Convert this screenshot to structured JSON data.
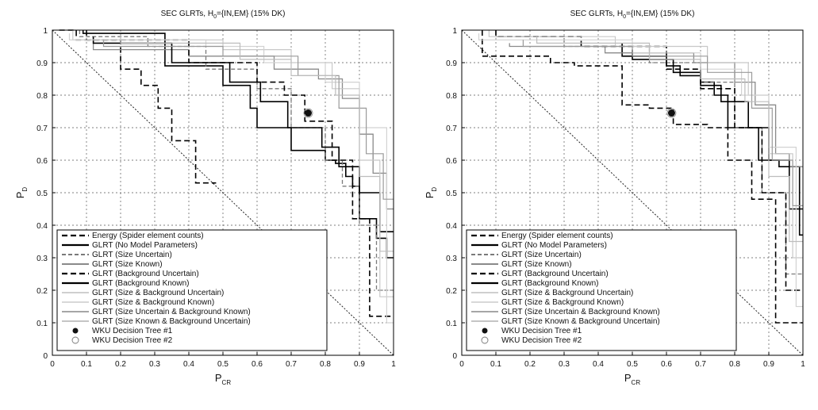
{
  "chart_data": [
    {
      "type": "line",
      "title_main": "SEC GLRTs, H",
      "title_sub": "0",
      "title_rest": "={IN,EM} (15% DK)",
      "xlabel_main": "P",
      "xlabel_sub": "CR",
      "ylabel_main": "P",
      "ylabel_sub": "D",
      "xlim": [
        0,
        1
      ],
      "ylim": [
        0,
        1
      ],
      "xticks": [
        "0",
        "0.1",
        "0.2",
        "0.3",
        "0.4",
        "0.5",
        "0.6",
        "0.7",
        "0.8",
        "0.9",
        "1"
      ],
      "yticks": [
        "0",
        "0.1",
        "0.2",
        "0.3",
        "0.4",
        "0.5",
        "0.6",
        "0.7",
        "0.8",
        "0.9",
        "1"
      ],
      "grid": true,
      "legend_position": "bottom-left",
      "series": [
        {
          "name": "Energy (Spider element counts)",
          "color": "#000000",
          "dash": "7,4",
          "width": 1.6,
          "x": [
            0.02,
            0.07,
            0.07,
            0.2,
            0.2,
            0.26,
            0.26,
            0.31,
            0.31,
            0.35,
            0.35,
            0.42,
            0.42,
            0.48
          ],
          "y": [
            1,
            1,
            0.97,
            0.97,
            0.88,
            0.88,
            0.83,
            0.83,
            0.76,
            0.76,
            0.66,
            0.66,
            0.53,
            0.53
          ]
        },
        {
          "name": "GLRT (No Model Parameters)",
          "color": "#000000",
          "dash": "",
          "width": 1.6,
          "x": [
            0.09,
            0.09,
            0.33,
            0.33,
            0.5,
            0.5,
            0.58,
            0.58,
            0.6,
            0.6,
            0.7,
            0.7,
            0.8,
            0.8,
            0.83,
            0.83,
            0.86,
            0.86,
            0.88,
            0.88,
            0.9,
            0.9,
            0.95,
            0.95,
            0.98,
            0.98,
            1
          ],
          "y": [
            1,
            0.99,
            0.99,
            0.89,
            0.89,
            0.83,
            0.83,
            0.76,
            0.76,
            0.7,
            0.7,
            0.63,
            0.63,
            0.6,
            0.6,
            0.59,
            0.59,
            0.55,
            0.55,
            0.52,
            0.52,
            0.42,
            0.42,
            0.36,
            0.36,
            0.3,
            0.3
          ]
        },
        {
          "name": "GLRT (Size Uncertain)",
          "color": "#7a7a7a",
          "dash": "5,3",
          "width": 1.3,
          "x": [
            0.08,
            0.08,
            0.28,
            0.28,
            0.45,
            0.45,
            0.6,
            0.6,
            0.7,
            0.7,
            0.8,
            0.8,
            0.85,
            0.85,
            0.9,
            0.9,
            0.95,
            0.95,
            1
          ],
          "y": [
            1,
            0.98,
            0.98,
            0.95,
            0.95,
            0.88,
            0.88,
            0.82,
            0.82,
            0.7,
            0.7,
            0.6,
            0.6,
            0.52,
            0.52,
            0.4,
            0.4,
            0.2,
            0.2
          ]
        },
        {
          "name": "GLRT (Size Known)",
          "color": "#8a8a8a",
          "dash": "",
          "width": 1.3,
          "x": [
            0.12,
            0.12,
            0.4,
            0.4,
            0.65,
            0.65,
            0.78,
            0.78,
            0.85,
            0.85,
            0.9,
            0.9,
            0.94,
            0.94,
            0.98,
            0.98,
            1
          ],
          "y": [
            0.96,
            0.94,
            0.94,
            0.92,
            0.92,
            0.88,
            0.88,
            0.85,
            0.85,
            0.79,
            0.79,
            0.68,
            0.68,
            0.56,
            0.56,
            0.45,
            0.45
          ]
        },
        {
          "name": "GLRT (Background Uncertain)",
          "color": "#000000",
          "dash": "7,4",
          "width": 1.6,
          "x": [
            0.1,
            0.1,
            0.4,
            0.4,
            0.6,
            0.6,
            0.68,
            0.68,
            0.74,
            0.74,
            0.82,
            0.82,
            0.88,
            0.88,
            0.93,
            0.93,
            1
          ],
          "y": [
            1,
            0.97,
            0.97,
            0.9,
            0.9,
            0.84,
            0.84,
            0.8,
            0.8,
            0.72,
            0.72,
            0.6,
            0.6,
            0.42,
            0.42,
            0.12,
            0.12
          ]
        },
        {
          "name": "GLRT (Background Known)",
          "color": "#000000",
          "dash": "",
          "width": 1.6,
          "x": [
            0.12,
            0.12,
            0.35,
            0.35,
            0.52,
            0.52,
            0.61,
            0.61,
            0.69,
            0.69,
            0.79,
            0.79,
            0.84,
            0.84,
            0.9,
            0.9,
            0.96,
            0.96,
            1
          ],
          "y": [
            0.98,
            0.96,
            0.96,
            0.9,
            0.9,
            0.84,
            0.84,
            0.78,
            0.78,
            0.7,
            0.7,
            0.64,
            0.64,
            0.58,
            0.58,
            0.5,
            0.5,
            0.38,
            0.38
          ]
        },
        {
          "name": "GLRT (Size & Background Uncertain)",
          "color": "#c8c8c8",
          "dash": "",
          "width": 1.2,
          "x": [
            0.06,
            0.06,
            0.5,
            0.5,
            0.7,
            0.7,
            0.82,
            0.82,
            0.9,
            0.9,
            0.96,
            0.96,
            1
          ],
          "y": [
            1,
            0.97,
            0.97,
            0.94,
            0.94,
            0.9,
            0.9,
            0.82,
            0.82,
            0.6,
            0.6,
            0.18,
            0.18
          ]
        },
        {
          "name": "GLRT (Size & Background Known)",
          "color": "#d2d2d2",
          "dash": "",
          "width": 1.2,
          "x": [
            0.05,
            0.05,
            0.45,
            0.45,
            0.62,
            0.62,
            0.8,
            0.8,
            0.9,
            0.9,
            0.98,
            0.98,
            1
          ],
          "y": [
            0.99,
            0.97,
            0.97,
            0.95,
            0.95,
            0.9,
            0.9,
            0.84,
            0.84,
            0.7,
            0.7,
            0.1,
            0.1
          ]
        },
        {
          "name": "GLRT (Size Uncertain & Background Known)",
          "color": "#9a9a9a",
          "dash": "",
          "width": 1.2,
          "x": [
            0.15,
            0.15,
            0.5,
            0.5,
            0.72,
            0.72,
            0.84,
            0.84,
            0.92,
            0.92,
            0.97,
            0.97,
            1
          ],
          "y": [
            0.97,
            0.95,
            0.95,
            0.92,
            0.92,
            0.86,
            0.86,
            0.76,
            0.76,
            0.62,
            0.62,
            0.48,
            0.48
          ]
        },
        {
          "name": "GLRT (Size Known & Background Uncertain)",
          "color": "#bdbdbd",
          "dash": "",
          "width": 1.2,
          "x": [
            0.2,
            0.2,
            0.55,
            0.55,
            0.7,
            0.7,
            0.83,
            0.83,
            0.9,
            0.9,
            0.96,
            0.96,
            1
          ],
          "y": [
            0.98,
            0.96,
            0.96,
            0.91,
            0.91,
            0.86,
            0.86,
            0.8,
            0.8,
            0.55,
            0.55,
            0.32,
            0.32
          ]
        }
      ],
      "markers": [
        {
          "name": "WKU Decision Tree #1",
          "x": 0.75,
          "y": 0.745,
          "filled": true
        },
        {
          "name": "WKU Decision Tree #2",
          "x": 0.75,
          "y": 0.745,
          "filled": false
        }
      ]
    },
    {
      "type": "line",
      "title_main": "SEC GLRTs, H",
      "title_sub": "0",
      "title_rest": "={IN,EM} (15% DK)",
      "xlabel_main": "P",
      "xlabel_sub": "CR",
      "ylabel_main": "P",
      "ylabel_sub": "D",
      "xlim": [
        0,
        1
      ],
      "ylim": [
        0,
        1
      ],
      "xticks": [
        "0",
        "0.1",
        "0.2",
        "0.3",
        "0.4",
        "0.5",
        "0.6",
        "0.7",
        "0.8",
        "0.9",
        "1"
      ],
      "yticks": [
        "0",
        "0.1",
        "0.2",
        "0.3",
        "0.4",
        "0.5",
        "0.6",
        "0.7",
        "0.8",
        "0.9",
        "1"
      ],
      "grid": true,
      "legend_position": "bottom-left",
      "series": [
        {
          "name": "Energy (Spider element counts)",
          "color": "#000000",
          "dash": "7,4",
          "width": 1.6,
          "x": [
            0.06,
            0.06,
            0.26,
            0.26,
            0.33,
            0.33,
            0.47,
            0.47,
            0.55,
            0.55,
            0.62,
            0.62,
            0.72,
            0.72,
            0.78,
            0.78,
            0.85,
            0.85,
            0.92,
            0.92,
            1
          ],
          "y": [
            1,
            0.92,
            0.92,
            0.9,
            0.9,
            0.89,
            0.89,
            0.77,
            0.77,
            0.76,
            0.76,
            0.71,
            0.71,
            0.7,
            0.7,
            0.6,
            0.6,
            0.48,
            0.48,
            0.1,
            0.1
          ]
        },
        {
          "name": "GLRT (No Model Parameters)",
          "color": "#000000",
          "dash": "",
          "width": 1.6,
          "x": [
            0.47,
            0.47,
            0.6,
            0.6,
            0.64,
            0.64,
            0.7,
            0.7,
            0.74,
            0.74,
            0.78,
            0.78,
            0.87,
            0.87,
            0.93,
            0.93,
            0.99,
            0.99,
            1
          ],
          "y": [
            0.96,
            0.92,
            0.92,
            0.89,
            0.89,
            0.86,
            0.86,
            0.84,
            0.84,
            0.8,
            0.8,
            0.7,
            0.7,
            0.6,
            0.6,
            0.58,
            0.58,
            0.37,
            0.37
          ]
        },
        {
          "name": "GLRT (Size Uncertain)",
          "color": "#7a7a7a",
          "dash": "5,3",
          "width": 1.3,
          "x": [
            0.1,
            0.1,
            0.3,
            0.3,
            0.55,
            0.55,
            0.7,
            0.7,
            0.8,
            0.8,
            0.88,
            0.88,
            0.95,
            0.95,
            1
          ],
          "y": [
            1,
            0.98,
            0.98,
            0.95,
            0.95,
            0.9,
            0.9,
            0.84,
            0.84,
            0.7,
            0.7,
            0.5,
            0.5,
            0.25,
            0.25
          ]
        },
        {
          "name": "GLRT (Size Known)",
          "color": "#8a8a8a",
          "dash": "",
          "width": 1.3,
          "x": [
            0.14,
            0.14,
            0.42,
            0.42,
            0.68,
            0.68,
            0.8,
            0.8,
            0.86,
            0.86,
            0.92,
            0.92,
            0.96,
            0.96,
            1
          ],
          "y": [
            0.96,
            0.95,
            0.95,
            0.93,
            0.93,
            0.9,
            0.9,
            0.84,
            0.84,
            0.77,
            0.77,
            0.62,
            0.62,
            0.58,
            0.58
          ]
        },
        {
          "name": "GLRT (Background Uncertain)",
          "color": "#000000",
          "dash": "7,4",
          "width": 1.6,
          "x": [
            0.1,
            0.1,
            0.35,
            0.35,
            0.6,
            0.6,
            0.7,
            0.7,
            0.8,
            0.8,
            0.88,
            0.88,
            0.95,
            0.95,
            1
          ],
          "y": [
            1,
            0.98,
            0.98,
            0.95,
            0.95,
            0.88,
            0.88,
            0.82,
            0.82,
            0.7,
            0.7,
            0.5,
            0.5,
            0.2,
            0.2
          ]
        },
        {
          "name": "GLRT (Background Known)",
          "color": "#000000",
          "dash": "",
          "width": 1.6,
          "x": [
            0.5,
            0.5,
            0.62,
            0.62,
            0.7,
            0.7,
            0.76,
            0.76,
            0.84,
            0.84,
            0.9,
            0.9,
            0.96,
            0.96,
            1
          ],
          "y": [
            0.94,
            0.91,
            0.91,
            0.87,
            0.87,
            0.83,
            0.83,
            0.78,
            0.78,
            0.7,
            0.7,
            0.6,
            0.6,
            0.45,
            0.45
          ]
        },
        {
          "name": "GLRT (Size & Background Uncertain)",
          "color": "#c8c8c8",
          "dash": "",
          "width": 1.2,
          "x": [
            0.08,
            0.08,
            0.45,
            0.45,
            0.72,
            0.72,
            0.84,
            0.84,
            0.9,
            0.9,
            0.97,
            0.97,
            1
          ],
          "y": [
            1,
            0.98,
            0.98,
            0.95,
            0.95,
            0.9,
            0.9,
            0.8,
            0.8,
            0.62,
            0.62,
            0.3,
            0.3
          ]
        },
        {
          "name": "GLRT (Size & Background Known)",
          "color": "#d2d2d2",
          "dash": "",
          "width": 1.2,
          "x": [
            0.05,
            0.05,
            0.5,
            0.5,
            0.7,
            0.7,
            0.82,
            0.82,
            0.9,
            0.9,
            0.98,
            0.98,
            1
          ],
          "y": [
            0.99,
            0.97,
            0.97,
            0.93,
            0.93,
            0.88,
            0.88,
            0.8,
            0.8,
            0.64,
            0.64,
            0.15,
            0.15
          ]
        },
        {
          "name": "GLRT (Size Uncertain & Background Known)",
          "color": "#9a9a9a",
          "dash": "",
          "width": 1.2,
          "x": [
            0.18,
            0.18,
            0.5,
            0.5,
            0.72,
            0.72,
            0.85,
            0.85,
            0.91,
            0.91,
            0.97,
            0.97,
            1
          ],
          "y": [
            0.97,
            0.95,
            0.95,
            0.92,
            0.92,
            0.87,
            0.87,
            0.76,
            0.76,
            0.6,
            0.6,
            0.46,
            0.46
          ]
        },
        {
          "name": "GLRT (Size Known & Background Uncertain)",
          "color": "#bdbdbd",
          "dash": "",
          "width": 1.2,
          "x": [
            0.22,
            0.22,
            0.55,
            0.55,
            0.7,
            0.7,
            0.83,
            0.83,
            0.9,
            0.9,
            0.96,
            0.96,
            1
          ],
          "y": [
            0.98,
            0.96,
            0.96,
            0.91,
            0.91,
            0.85,
            0.85,
            0.78,
            0.78,
            0.55,
            0.55,
            0.35,
            0.35
          ]
        }
      ],
      "markers": [
        {
          "name": "WKU Decision Tree #1",
          "x": 0.615,
          "y": 0.745,
          "filled": true
        },
        {
          "name": "WKU Decision Tree #2",
          "x": 0.615,
          "y": 0.745,
          "filled": false
        }
      ]
    }
  ]
}
